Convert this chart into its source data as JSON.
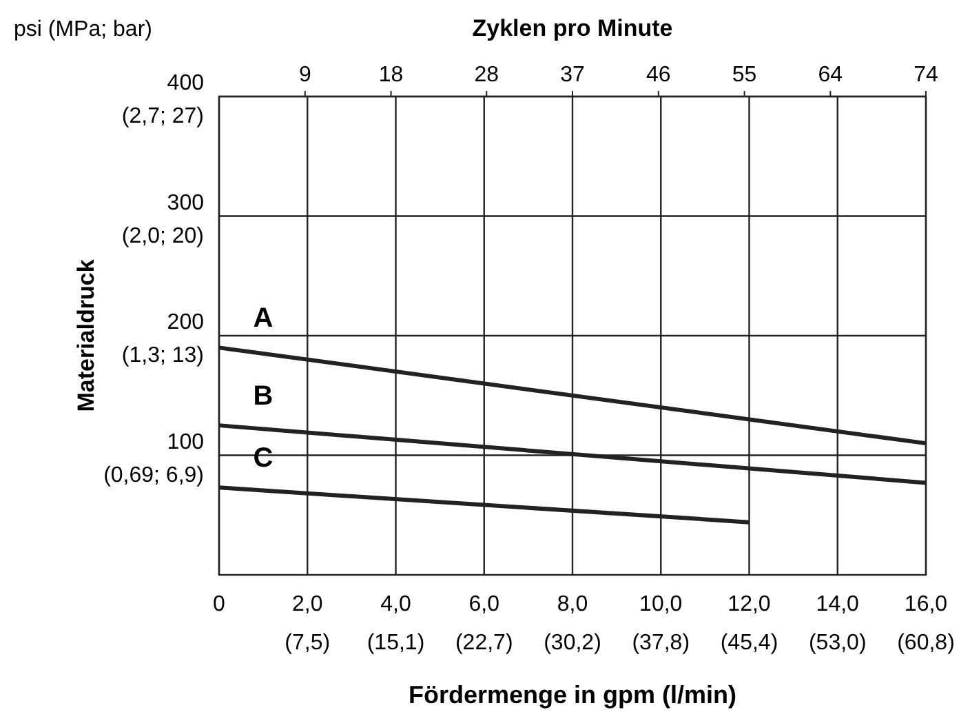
{
  "chart_data": {
    "type": "line",
    "xlabel": "Fördermenge in gpm (l/min)",
    "ylabel": "Materialdruck",
    "x2label": "Zyklen pro Minute",
    "xlim": [
      0,
      16
    ],
    "ylim": [
      0,
      400
    ],
    "x2lim": [
      0,
      74
    ],
    "xticks": [
      0,
      {
        "value": 2,
        "label": "2,0"
      },
      {
        "value": 4,
        "label": "4,0"
      },
      {
        "value": 6,
        "label": "6,0"
      },
      {
        "value": 8,
        "label": "8,0"
      },
      {
        "value": 10,
        "label": "10,0"
      },
      {
        "value": 12,
        "label": "12,0"
      },
      {
        "value": 14,
        "label": "14,0"
      },
      {
        "value": 16,
        "label": "16,0"
      }
    ],
    "x2ticks": [
      9,
      18,
      28,
      37,
      46,
      55,
      64,
      74
    ],
    "yticks": [
      100,
      200,
      300,
      400
    ],
    "grid": true,
    "line_style": "solid",
    "marker": "none",
    "series": [
      {
        "name": "A",
        "color": "#222222",
        "x": [
          0,
          16
        ],
        "values": [
          190,
          110
        ]
      },
      {
        "name": "B",
        "color": "#222222",
        "x": [
          0,
          16
        ],
        "values": [
          125,
          77
        ]
      },
      {
        "name": "C",
        "color": "#222222",
        "x": [
          0,
          12
        ],
        "values": [
          73,
          44
        ]
      }
    ],
    "annotations": [
      "psi (MPa; bar)",
      "(7,5)",
      "(15,1)",
      "(22,7)",
      "(30,2)",
      "(37,8)",
      "(45,4)",
      "(53,0)",
      "(60,8)",
      "(0,69; 6,9)",
      "(1,3; 13)",
      "(2,0; 20)",
      "(2,7; 27)"
    ]
  }
}
